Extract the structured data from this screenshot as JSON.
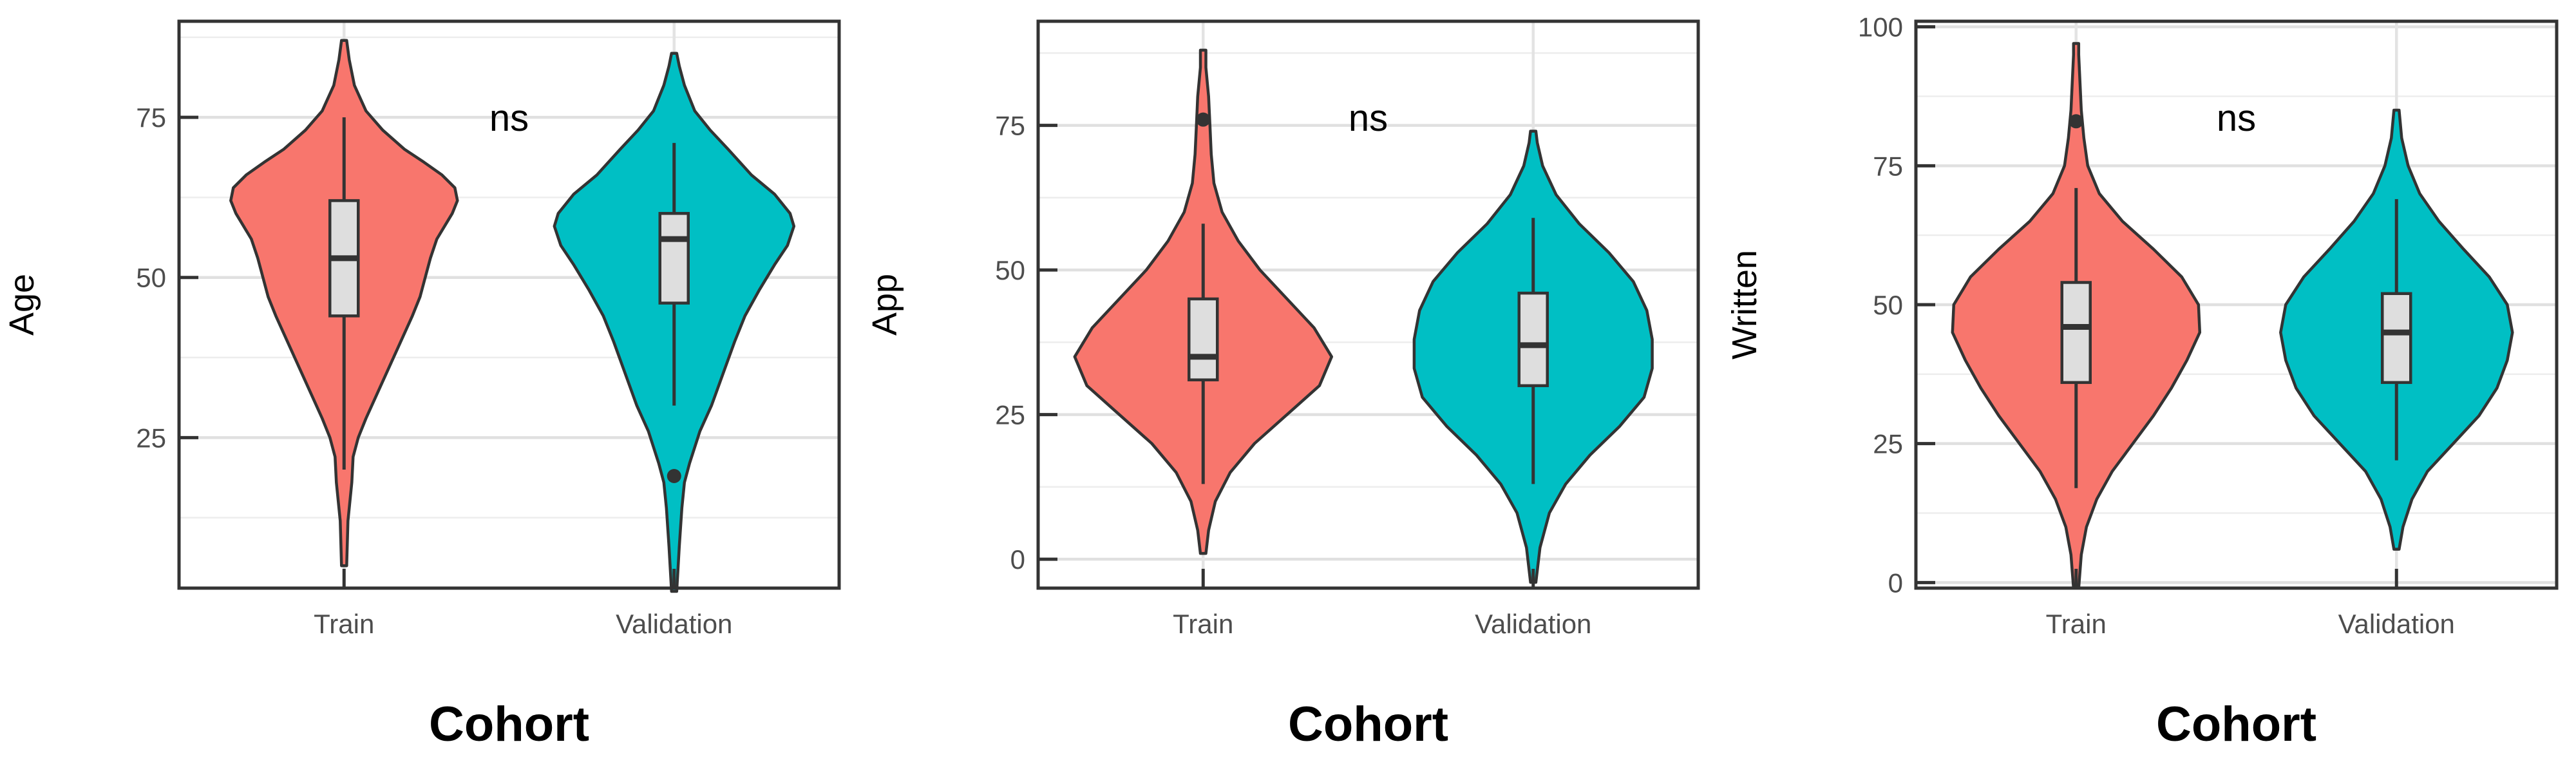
{
  "chart_data": [
    {
      "type": "violin",
      "xlabel": "Cohort",
      "ylabel": "Age",
      "ylim": [
        1.5,
        90
      ],
      "yticks": [
        25,
        50,
        75
      ],
      "categories": [
        "Train",
        "Validation"
      ],
      "annotation": "ns",
      "grid": true,
      "colors": {
        "Train": "#F8766D",
        "Validation": "#00BFC4"
      },
      "series": [
        {
          "category": "Train",
          "min": 5,
          "max": 87,
          "box": {
            "q1": 44,
            "median": 53,
            "q3": 62,
            "whisker_low": 20,
            "whisker_high": 75
          },
          "outliers": [],
          "density": [
            [
              5,
              0.02
            ],
            [
              12,
              0.03
            ],
            [
              18,
              0.06
            ],
            [
              22,
              0.07
            ],
            [
              25,
              0.11
            ],
            [
              28,
              0.17
            ],
            [
              32,
              0.26
            ],
            [
              36,
              0.35
            ],
            [
              40,
              0.44
            ],
            [
              44,
              0.53
            ],
            [
              47,
              0.59
            ],
            [
              50,
              0.63
            ],
            [
              53,
              0.67
            ],
            [
              56,
              0.72
            ],
            [
              58,
              0.78
            ],
            [
              60,
              0.84
            ],
            [
              62,
              0.88
            ],
            [
              64,
              0.86
            ],
            [
              66,
              0.76
            ],
            [
              68,
              0.62
            ],
            [
              70,
              0.47
            ],
            [
              73,
              0.3
            ],
            [
              76,
              0.17
            ],
            [
              80,
              0.08
            ],
            [
              84,
              0.04
            ],
            [
              87,
              0.02
            ]
          ]
        },
        {
          "category": "Validation",
          "min": 1,
          "max": 85,
          "box": {
            "q1": 46,
            "median": 56,
            "q3": 60,
            "whisker_low": 30,
            "whisker_high": 71
          },
          "outliers": [
            19
          ],
          "density": [
            [
              1,
              0.02
            ],
            [
              8,
              0.04
            ],
            [
              14,
              0.06
            ],
            [
              18,
              0.08
            ],
            [
              21,
              0.12
            ],
            [
              26,
              0.2
            ],
            [
              30,
              0.29
            ],
            [
              35,
              0.38
            ],
            [
              40,
              0.47
            ],
            [
              44,
              0.55
            ],
            [
              48,
              0.66
            ],
            [
              52,
              0.78
            ],
            [
              55,
              0.88
            ],
            [
              58,
              0.93
            ],
            [
              60,
              0.9
            ],
            [
              63,
              0.78
            ],
            [
              66,
              0.6
            ],
            [
              70,
              0.42
            ],
            [
              73,
              0.28
            ],
            [
              76,
              0.16
            ],
            [
              80,
              0.08
            ],
            [
              83,
              0.04
            ],
            [
              85,
              0.02
            ]
          ]
        }
      ]
    },
    {
      "type": "violin",
      "xlabel": "Cohort",
      "ylabel": "App",
      "ylim": [
        -5,
        93
      ],
      "yticks": [
        0,
        25,
        50,
        75
      ],
      "categories": [
        "Train",
        "Validation"
      ],
      "annotation": "ns",
      "grid": true,
      "colors": {
        "Train": "#F8766D",
        "Validation": "#00BFC4"
      },
      "series": [
        {
          "category": "Train",
          "min": 1,
          "max": 88,
          "box": {
            "q1": 31,
            "median": 35,
            "q3": 45,
            "whisker_low": 13,
            "whisker_high": 58
          },
          "outliers": [
            76
          ],
          "density": [
            [
              1,
              0.02
            ],
            [
              5,
              0.04
            ],
            [
              10,
              0.09
            ],
            [
              15,
              0.2
            ],
            [
              20,
              0.38
            ],
            [
              25,
              0.62
            ],
            [
              30,
              0.86
            ],
            [
              35,
              0.95
            ],
            [
              40,
              0.82
            ],
            [
              45,
              0.62
            ],
            [
              50,
              0.42
            ],
            [
              55,
              0.26
            ],
            [
              60,
              0.14
            ],
            [
              65,
              0.08
            ],
            [
              70,
              0.06
            ],
            [
              75,
              0.05
            ],
            [
              80,
              0.04
            ],
            [
              85,
              0.02
            ],
            [
              88,
              0.02
            ]
          ]
        },
        {
          "category": "Validation",
          "min": -4,
          "max": 74,
          "box": {
            "q1": 30,
            "median": 37,
            "q3": 46,
            "whisker_low": 13,
            "whisker_high": 59
          },
          "outliers": [],
          "density": [
            [
              -4,
              0.02
            ],
            [
              2,
              0.05
            ],
            [
              8,
              0.12
            ],
            [
              13,
              0.24
            ],
            [
              18,
              0.42
            ],
            [
              23,
              0.64
            ],
            [
              28,
              0.82
            ],
            [
              33,
              0.88
            ],
            [
              38,
              0.88
            ],
            [
              43,
              0.84
            ],
            [
              48,
              0.74
            ],
            [
              53,
              0.56
            ],
            [
              58,
              0.34
            ],
            [
              63,
              0.17
            ],
            [
              68,
              0.07
            ],
            [
              72,
              0.03
            ],
            [
              74,
              0.02
            ]
          ]
        }
      ]
    },
    {
      "type": "violin",
      "xlabel": "Cohort",
      "ylabel": "Written",
      "ylim": [
        -1,
        101
      ],
      "yticks": [
        0,
        25,
        50,
        75,
        100
      ],
      "categories": [
        "Train",
        "Validation"
      ],
      "annotation": "ns",
      "grid": true,
      "colors": {
        "Train": "#F8766D",
        "Validation": "#00BFC4"
      },
      "series": [
        {
          "category": "Train",
          "min": -1,
          "max": 97,
          "box": {
            "q1": 36,
            "median": 46,
            "q3": 54,
            "whisker_low": 17,
            "whisker_high": 71
          },
          "outliers": [
            83
          ],
          "density": [
            [
              -1,
              0.02
            ],
            [
              5,
              0.04
            ],
            [
              10,
              0.08
            ],
            [
              15,
              0.16
            ],
            [
              20,
              0.28
            ],
            [
              25,
              0.44
            ],
            [
              30,
              0.6
            ],
            [
              35,
              0.74
            ],
            [
              40,
              0.86
            ],
            [
              45,
              0.96
            ],
            [
              50,
              0.95
            ],
            [
              55,
              0.82
            ],
            [
              60,
              0.6
            ],
            [
              65,
              0.36
            ],
            [
              70,
              0.18
            ],
            [
              75,
              0.09
            ],
            [
              80,
              0.06
            ],
            [
              85,
              0.04
            ],
            [
              90,
              0.03
            ],
            [
              95,
              0.02
            ],
            [
              97,
              0.02
            ]
          ]
        },
        {
          "category": "Validation",
          "min": 6,
          "max": 85,
          "box": {
            "q1": 36,
            "median": 45,
            "q3": 52,
            "whisker_low": 22,
            "whisker_high": 69
          },
          "outliers": [],
          "density": [
            [
              6,
              0.02
            ],
            [
              10,
              0.05
            ],
            [
              15,
              0.12
            ],
            [
              20,
              0.24
            ],
            [
              25,
              0.44
            ],
            [
              30,
              0.64
            ],
            [
              35,
              0.78
            ],
            [
              40,
              0.86
            ],
            [
              45,
              0.9
            ],
            [
              50,
              0.86
            ],
            [
              55,
              0.72
            ],
            [
              60,
              0.52
            ],
            [
              65,
              0.33
            ],
            [
              70,
              0.18
            ],
            [
              75,
              0.09
            ],
            [
              80,
              0.04
            ],
            [
              85,
              0.02
            ]
          ]
        }
      ]
    }
  ]
}
